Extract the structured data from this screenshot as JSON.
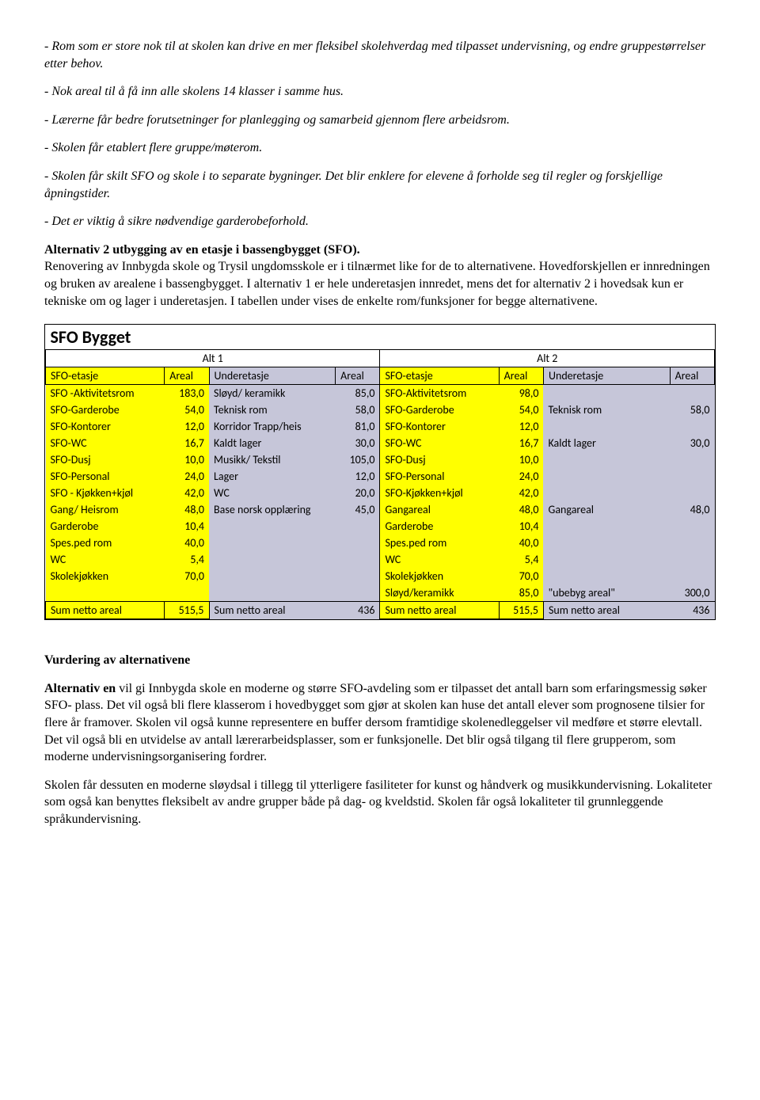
{
  "intro": {
    "p1": "- Rom som er store nok til at skolen kan drive en mer fleksibel skolehverdag med tilpasset undervisning, og endre gruppestørrelser etter behov.",
    "p2": "- Nok areal til å få inn alle skolens 14 klasser i samme hus.",
    "p3": "- Lærerne får bedre forutsetninger for planlegging og samarbeid gjennom flere arbeidsrom.",
    "p4": "- Skolen får etablert flere gruppe/møterom.",
    "p5": "- Skolen får skilt SFO og skole i to separate bygninger. Det blir enklere for elevene å forholde seg til regler og forskjellige åpningstider.",
    "p6": "- Det er viktig å sikre nødvendige garderobeforhold."
  },
  "alt2": {
    "title": "Alternativ 2 utbygging av en etasje i bassengbygget (SFO).",
    "body": "Renovering av Innbygda skole og Trysil ungdomsskole er i tilnærmet like for de to alternativene. Hovedforskjellen er innredningen og bruken av arealene i bassengbygget. I alternativ 1 er hele underetasjen innredet, mens det for alternativ 2 i hovedsak kun er tekniske om og lager i underetasjen. I tabellen under vises de enkelte rom/funksjoner  for begge alternativene."
  },
  "table": {
    "title": "SFO Bygget",
    "alt1": "Alt 1",
    "alt2": "Alt 2",
    "h": {
      "sfo": "SFO-etasje",
      "areal": "Areal",
      "under": "Underetasje"
    },
    "rows": [
      {
        "a1l": "SFO -Aktivitetsrom",
        "a1v": "183,0",
        "u1l": "Sløyd/ keramikk",
        "u1v": "85,0",
        "a2l": "SFO-Aktivitetsrom",
        "a2v": "98,0",
        "u2l": "",
        "u2v": ""
      },
      {
        "a1l": "SFO-Garderobe",
        "a1v": "54,0",
        "u1l": "Teknisk rom",
        "u1v": "58,0",
        "a2l": "SFO-Garderobe",
        "a2v": "54,0",
        "u2l": "Teknisk rom",
        "u2v": "58,0"
      },
      {
        "a1l": "SFO-Kontorer",
        "a1v": "12,0",
        "u1l": "Korridor Trapp/heis",
        "u1v": "81,0",
        "a2l": "SFO-Kontorer",
        "a2v": "12,0",
        "u2l": "",
        "u2v": ""
      },
      {
        "a1l": "SFO-WC",
        "a1v": "16,7",
        "u1l": "Kaldt lager",
        "u1v": "30,0",
        "a2l": "SFO-WC",
        "a2v": "16,7",
        "u2l": "Kaldt lager",
        "u2v": "30,0"
      },
      {
        "a1l": "SFO-Dusj",
        "a1v": "10,0",
        "u1l": "Musikk/ Tekstil",
        "u1v": "105,0",
        "a2l": "SFO-Dusj",
        "a2v": "10,0",
        "u2l": "",
        "u2v": ""
      },
      {
        "a1l": "SFO-Personal",
        "a1v": "24,0",
        "u1l": "Lager",
        "u1v": "12,0",
        "a2l": "SFO-Personal",
        "a2v": "24,0",
        "u2l": "",
        "u2v": ""
      },
      {
        "a1l": "SFO - Kjøkken+kjøl",
        "a1v": "42,0",
        "u1l": "WC",
        "u1v": "20,0",
        "a2l": "SFO-Kjøkken+kjøl",
        "a2v": "42,0",
        "u2l": "",
        "u2v": ""
      },
      {
        "a1l": "Gang/ Heisrom",
        "a1v": "48,0",
        "u1l": "Base norsk opplæring",
        "u1v": "45,0",
        "a2l": "Gangareal",
        "a2v": "48,0",
        "u2l": "Gangareal",
        "u2v": "48,0"
      },
      {
        "a1l": "Garderobe",
        "a1v": "10,4",
        "u1l": "",
        "u1v": "",
        "a2l": "Garderobe",
        "a2v": "10,4",
        "u2l": "",
        "u2v": ""
      },
      {
        "a1l": "Spes.ped rom",
        "a1v": "40,0",
        "u1l": "",
        "u1v": "",
        "a2l": "Spes.ped rom",
        "a2v": "40,0",
        "u2l": "",
        "u2v": ""
      },
      {
        "a1l": "WC",
        "a1v": "5,4",
        "u1l": "",
        "u1v": "",
        "a2l": "WC",
        "a2v": "5,4",
        "u2l": "",
        "u2v": ""
      },
      {
        "a1l": "Skolekjøkken",
        "a1v": "70,0",
        "u1l": "",
        "u1v": "",
        "a2l": "Skolekjøkken",
        "a2v": "70,0",
        "u2l": "",
        "u2v": ""
      },
      {
        "a1l": "",
        "a1v": "",
        "u1l": "",
        "u1v": "",
        "a2l": "Sløyd/keramikk",
        "a2v": "85,0",
        "u2l": "\"ubebyg areal\"",
        "u2v": "300,0"
      }
    ],
    "sum": {
      "label": "Sum netto areal",
      "a1": "515,5",
      "u1": "436",
      "a2": "515,5",
      "u2": "436"
    }
  },
  "vurdering": {
    "title": "Vurdering av alternativene",
    "p1lead": "Alternativ en",
    "p1": " vil gi Innbygda skole en moderne og større SFO-avdeling som er tilpasset det antall barn som erfaringsmessig søker SFO- plass. Det vil også bli flere klasserom i hovedbygget som gjør at skolen kan huse det antall elever som prognosene tilsier for flere år framover. Skolen vil også kunne representere en buffer dersom framtidige skolenedleggelser vil medføre et større elevtall. Det vil også bli en utvidelse av antall lærerarbeidsplasser, som er funksjonelle. Det blir også tilgang til flere grupperom, som moderne undervisningsorganisering fordrer.",
    "p2": "Skolen får dessuten en moderne sløydsal i tillegg til ytterligere fasiliteter for kunst og håndverk og musikkundervisning. Lokaliteter som også kan benyttes fleksibelt av andre grupper både på dag- og kveldstid. Skolen får også lokaliteter til grunnleggende språkundervisning."
  },
  "colors": {
    "yellow": "#ffff00",
    "grey": "#c6c6d9"
  },
  "col_widths": [
    "16%",
    "6%",
    "17%",
    "6%",
    "16%",
    "6%",
    "17%",
    "6%"
  ]
}
